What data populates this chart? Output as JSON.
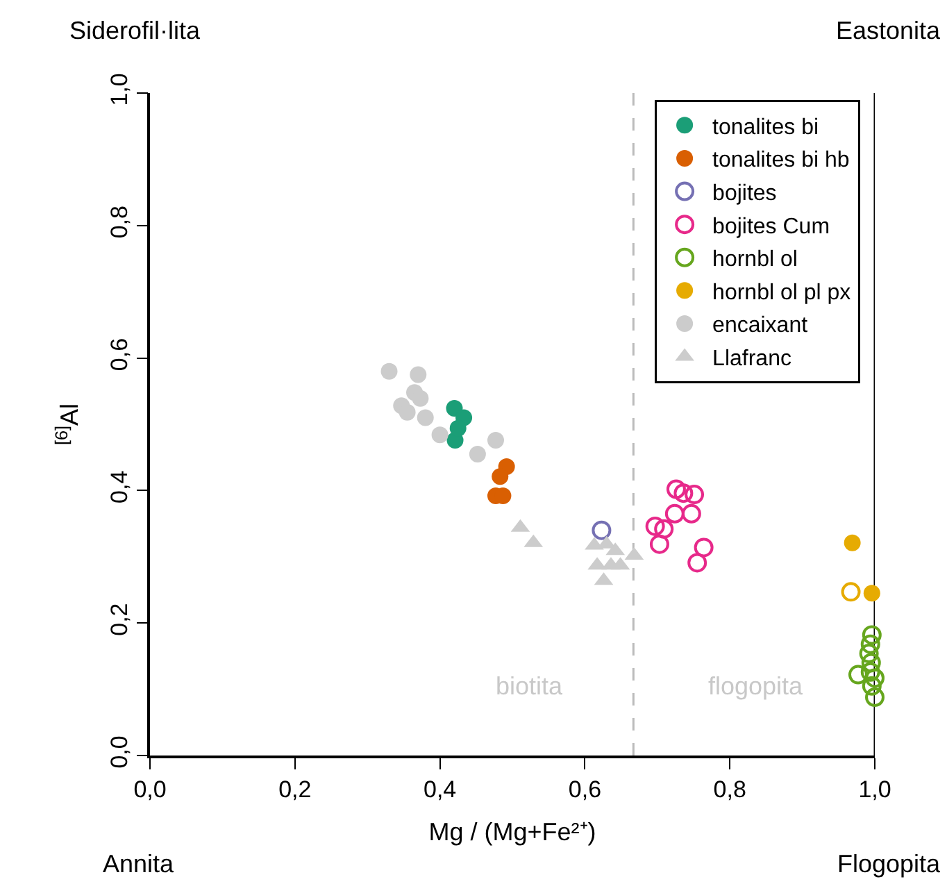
{
  "chart_data": {
    "type": "scatter",
    "xlabel": "Mg / (Mg+Fe²⁺)",
    "ylabel": "$^{[6]}$Al",
    "xlim": [
      0,
      1
    ],
    "ylim": [
      0,
      1
    ],
    "xticks": [
      {
        "value": 0,
        "label": "0,0"
      },
      {
        "value": 0.2,
        "label": "0,2"
      },
      {
        "value": 0.4,
        "label": "0,4"
      },
      {
        "value": 0.6,
        "label": "0,6"
      },
      {
        "value": 0.8,
        "label": "0,8"
      },
      {
        "value": 1,
        "label": "1,0"
      }
    ],
    "yticks": [
      {
        "value": 0,
        "label": "0,0"
      },
      {
        "value": 0.2,
        "label": "0,2"
      },
      {
        "value": 0.4,
        "label": "0,4"
      },
      {
        "value": 0.6,
        "label": "0,6"
      },
      {
        "value": 0.8,
        "label": "0,8"
      },
      {
        "value": 1,
        "label": "1,0"
      }
    ],
    "grid": false,
    "legend": "top right",
    "series": [
      {
        "name": "tonalites bi",
        "color": "#1b9e77",
        "marker": "circle",
        "x": [
          0.42,
          0.433,
          0.421,
          0.425
        ],
        "values": [
          0.524,
          0.51,
          0.476,
          0.494
        ]
      },
      {
        "name": "tonalites bi hb",
        "color": "#d95f02",
        "marker": "circle",
        "x": [
          0.492,
          0.483,
          0.477,
          0.487
        ],
        "values": [
          0.436,
          0.421,
          0.392,
          0.392
        ]
      },
      {
        "name": "bojites",
        "color": "#7570b3",
        "marker": "circle-open",
        "x": [
          0.623
        ],
        "values": [
          0.34
        ]
      },
      {
        "name": "bojites Cum",
        "color": "#e7298a",
        "marker": "circle-open",
        "x": [
          0.726,
          0.736,
          0.751,
          0.724,
          0.747,
          0.697,
          0.709,
          0.703,
          0.764,
          0.755
        ],
        "values": [
          0.402,
          0.396,
          0.394,
          0.365,
          0.365,
          0.346,
          0.342,
          0.319,
          0.314,
          0.291
        ]
      },
      {
        "name": "hornbl ol",
        "color": "#66a61e",
        "marker": "circle-open",
        "x": [
          0.977,
          0.996,
          0.994,
          0.992,
          0.995,
          0.994,
          1.0,
          0.996,
          1.0
        ],
        "values": [
          0.122,
          0.182,
          0.168,
          0.154,
          0.14,
          0.126,
          0.117,
          0.105,
          0.088
        ]
      },
      {
        "color": "#e6ab02",
        "marker": "circle-open",
        "x": [
          0.967
        ],
        "values": [
          0.247
        ]
      },
      {
        "name": "hornbl ol pl px",
        "color": "#e6ab02",
        "marker": "circle",
        "x": [
          0.969,
          0.996
        ],
        "values": [
          0.321,
          0.245
        ]
      },
      {
        "name": "encaixant",
        "color": "#cccccc",
        "marker": "circle",
        "x": [
          0.33,
          0.37,
          0.365,
          0.373,
          0.347,
          0.355,
          0.38,
          0.4,
          0.477,
          0.452
        ],
        "values": [
          0.58,
          0.575,
          0.548,
          0.539,
          0.528,
          0.518,
          0.51,
          0.484,
          0.476,
          0.455
        ]
      },
      {
        "name": "Llafranc",
        "color": "#cccccc",
        "marker": "triangle",
        "x": [
          0.511,
          0.529,
          0.613,
          0.63,
          0.642,
          0.617,
          0.636,
          0.649,
          0.626,
          0.668
        ],
        "values": [
          0.344,
          0.321,
          0.317,
          0.319,
          0.309,
          0.287,
          0.287,
          0.287,
          0.264,
          0.302
        ]
      }
    ],
    "ref_lines": [
      {
        "axis": "x",
        "value": 0.667,
        "color": "#bbbbbb",
        "line_style": "dashed"
      },
      {
        "axis": "x",
        "value": 1,
        "color": "#000000",
        "line_style": "solid"
      }
    ],
    "annotations": [
      "Siderofil·lita",
      "Eastonita",
      "Annita",
      "Flogopita",
      "biotita",
      "flogopita"
    ]
  }
}
